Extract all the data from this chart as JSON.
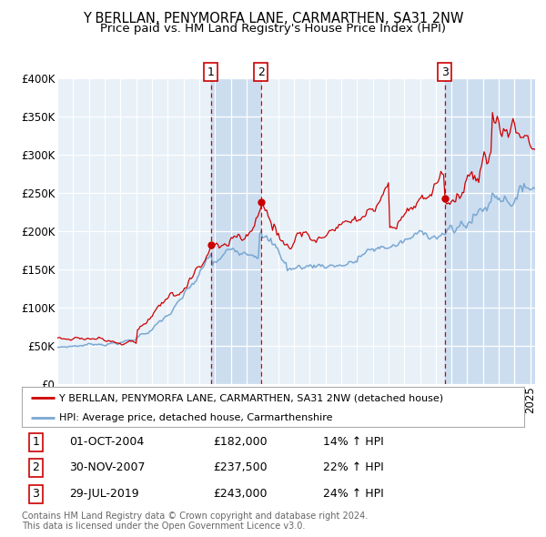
{
  "title": "Y BERLLAN, PENYMORFA LANE, CARMARTHEN, SA31 2NW",
  "subtitle": "Price paid vs. HM Land Registry's House Price Index (HPI)",
  "ylim": [
    0,
    400000
  ],
  "yticks": [
    0,
    50000,
    100000,
    150000,
    200000,
    250000,
    300000,
    350000,
    400000
  ],
  "ytick_labels": [
    "£0",
    "£50K",
    "£100K",
    "£150K",
    "£200K",
    "£250K",
    "£300K",
    "£350K",
    "£400K"
  ],
  "background_color": "#ffffff",
  "plot_bg_color": "#e8f0f8",
  "grid_color": "#ffffff",
  "red_line_color": "#cc0000",
  "blue_line_color": "#7aa8d2",
  "transaction_color": "#cc0000",
  "sale_1": {
    "date_year": 2004.75,
    "price": 182000,
    "label": "1"
  },
  "sale_2": {
    "date_year": 2007.92,
    "price": 237500,
    "label": "2"
  },
  "sale_3": {
    "date_year": 2019.58,
    "price": 243000,
    "label": "3"
  },
  "vline_color": "#cc0000",
  "shade_color": "#ccddf0",
  "legend_label_red": "Y BERLLAN, PENYMORFA LANE, CARMARTHEN, SA31 2NW (detached house)",
  "legend_label_blue": "HPI: Average price, detached house, Carmarthenshire",
  "table_rows": [
    {
      "num": "1",
      "date": "01-OCT-2004",
      "price": "£182,000",
      "pct": "14% ↑ HPI"
    },
    {
      "num": "2",
      "date": "30-NOV-2007",
      "price": "£237,500",
      "pct": "22% ↑ HPI"
    },
    {
      "num": "3",
      "date": "29-JUL-2019",
      "price": "£243,000",
      "pct": "24% ↑ HPI"
    }
  ],
  "footer": "Contains HM Land Registry data © Crown copyright and database right 2024.\nThis data is licensed under the Open Government Licence v3.0.",
  "title_fontsize": 10.5,
  "subtitle_fontsize": 9.5,
  "tick_fontsize": 8.5,
  "xlim_start": 1995,
  "xlim_end": 2025.3
}
